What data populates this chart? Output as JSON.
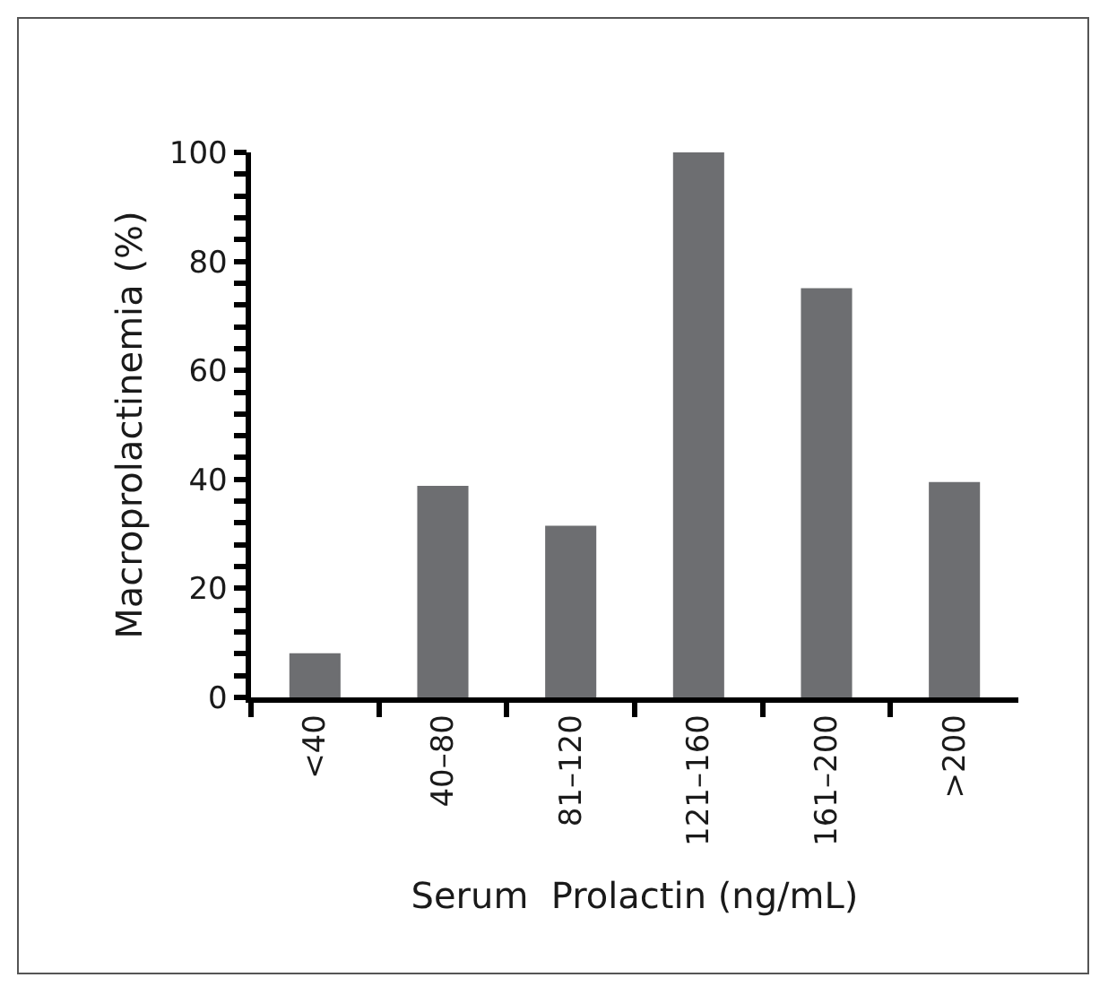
{
  "chart_data": {
    "type": "bar",
    "xlabel": "Serum  Prolactin (ng/mL)",
    "ylabel": "Macroprolactinemia (%)",
    "categories": [
      "<40",
      "40–80",
      "81–120",
      "121–160",
      "161–200",
      ">200"
    ],
    "values": [
      8.1,
      38.8,
      31.5,
      100,
      75.1,
      39.5
    ],
    "color": "#6d6e71",
    "ylim": [
      0,
      100
    ],
    "yticks": [
      0,
      {
        "value": 4,
        "label": null
      },
      {
        "value": 8,
        "label": null
      },
      {
        "value": 12,
        "label": null
      },
      {
        "value": 16,
        "label": null
      },
      20,
      {
        "value": 24,
        "label": null
      },
      {
        "value": 28,
        "label": null
      },
      {
        "value": 32,
        "label": null
      },
      {
        "value": 36,
        "label": null
      },
      40,
      {
        "value": 44,
        "label": null
      },
      {
        "value": 48,
        "label": null
      },
      {
        "value": 52,
        "label": null
      },
      {
        "value": 56,
        "label": null
      },
      60,
      {
        "value": 64,
        "label": null
      },
      {
        "value": 68,
        "label": null
      },
      {
        "value": 72,
        "label": null
      },
      {
        "value": 76,
        "label": null
      },
      80,
      {
        "value": 84,
        "label": null
      },
      {
        "value": 88,
        "label": null
      },
      {
        "value": 92,
        "label": null
      },
      {
        "value": 96,
        "label": null
      },
      100
    ]
  }
}
